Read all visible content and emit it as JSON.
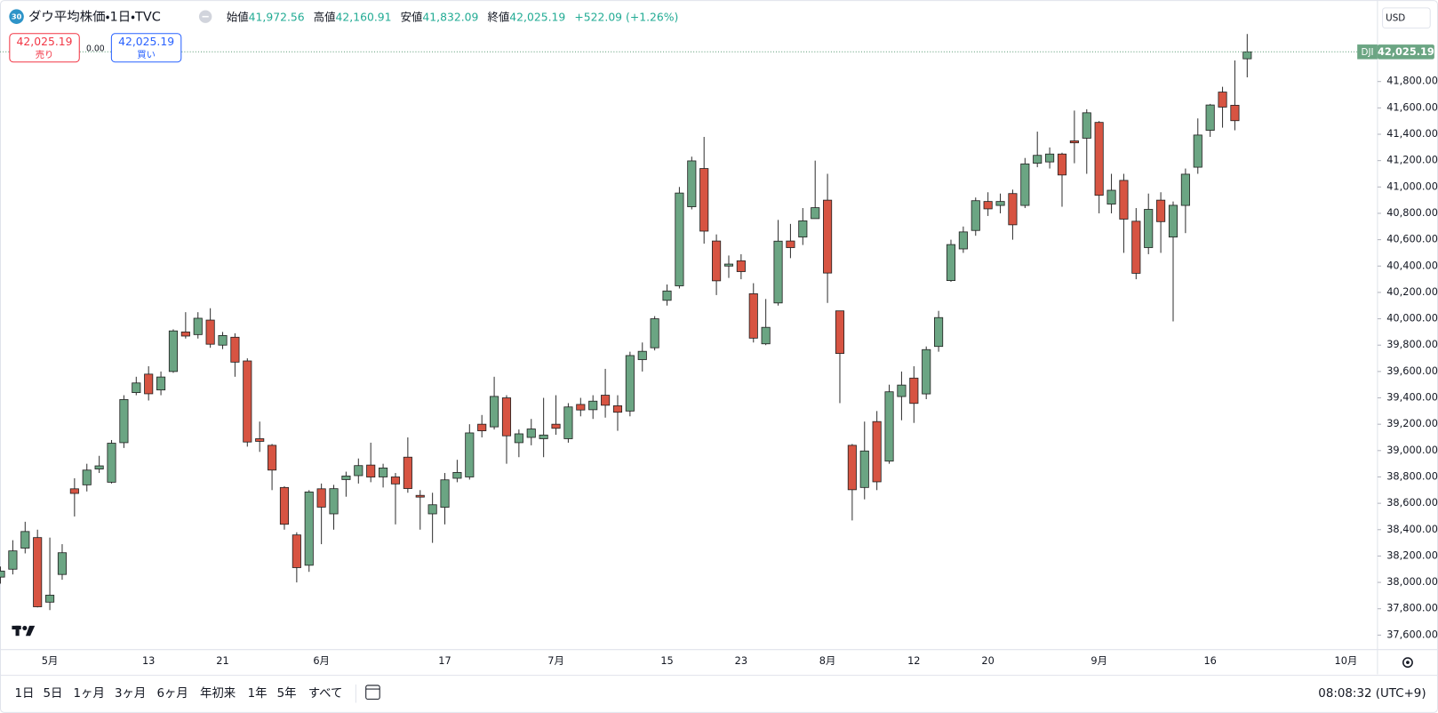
{
  "header": {
    "badge": "30",
    "title": "ダウ平均株価・1日・TVC",
    "ohlc": [
      {
        "name": "始値",
        "value": "41,972.56"
      },
      {
        "name": "高値",
        "value": "42,160.91"
      },
      {
        "name": "安値",
        "value": "41,832.09"
      },
      {
        "name": "終値",
        "value": "42,025.19"
      }
    ],
    "change": "+522.09 (+1.26%)"
  },
  "trade": {
    "sell_price": "42,025.19",
    "sell": "売り",
    "spread": "0.00",
    "buy_price": "42,025.19",
    "buy": "買い"
  },
  "currency": "USD",
  "last_price": {
    "symbol": "DJI",
    "label": "42,025.19"
  },
  "toolbar": {
    "ranges": [
      "1日",
      "5日",
      "1ヶ月",
      "3ヶ月",
      "6ヶ月",
      "年初来",
      "1年",
      "5年",
      "すべて"
    ],
    "clock": "08:08:32 (UTC+9)"
  },
  "chart_data": {
    "type": "candlestick",
    "categories": [
      null,
      null,
      null,
      null,
      "5月",
      null,
      null,
      null,
      null,
      null,
      null,
      null,
      "13",
      null,
      null,
      null,
      null,
      null,
      "21",
      null,
      null,
      null,
      null,
      null,
      null,
      null,
      "6月",
      null,
      null,
      null,
      null,
      null,
      null,
      null,
      null,
      null,
      "17",
      null,
      null,
      null,
      null,
      null,
      null,
      null,
      null,
      "7月",
      null,
      null,
      null,
      null,
      null,
      null,
      null,
      null,
      "15",
      null,
      null,
      null,
      null,
      null,
      "23",
      null,
      null,
      null,
      null,
      null,
      null,
      "8月",
      null,
      null,
      null,
      null,
      null,
      null,
      "12",
      null,
      null,
      null,
      null,
      null,
      "20",
      null,
      null,
      null,
      null,
      null,
      null,
      null,
      null,
      "9月",
      null,
      null,
      null,
      null,
      null,
      null,
      null,
      null,
      "16",
      null,
      null,
      null,
      null,
      null,
      null,
      null,
      null,
      null,
      null,
      "10月"
    ],
    "open": [
      38040,
      38100,
      38260,
      38340,
      37850,
      38060,
      38710,
      38740,
      38860,
      38760,
      39060,
      39440,
      39580,
      39460,
      39600,
      39900,
      39880,
      39990,
      39800,
      39860,
      39680,
      39090,
      39040,
      38720,
      38360,
      38130,
      38710,
      38520,
      38780,
      38810,
      38890,
      38800,
      38800,
      38950,
      38660,
      38520,
      38570,
      38790,
      38800,
      39200,
      39180,
      39400,
      39060,
      39100,
      39090,
      39200,
      39090,
      39350,
      39310,
      39420,
      39340,
      39300,
      39690,
      39780,
      40140,
      40250,
      40850,
      41140,
      40590,
      40400,
      40440,
      40190,
      39810,
      40120,
      40590,
      40620,
      40760,
      40900,
      40060,
      39040,
      38720,
      39220,
      38920,
      39410,
      39550,
      39430,
      39790,
      40290,
      40530,
      40670,
      40890,
      40860,
      40950,
      40860,
      41180,
      41190,
      41250,
      41350,
      41370,
      41490,
      40870,
      41050,
      40740,
      40540,
      40900,
      40620,
      40860,
      41150,
      41430,
      41720,
      41620,
      41972.56,
      null,
      null,
      null,
      null,
      null,
      null,
      null,
      null
    ],
    "high": [
      38120,
      38320,
      38460,
      38400,
      38340,
      38290,
      38790,
      38900,
      38960,
      39080,
      39420,
      39560,
      39640,
      39600,
      39920,
      40050,
      40050,
      40080,
      39900,
      39890,
      39700,
      39220,
      39050,
      38730,
      38380,
      38700,
      38750,
      38740,
      38840,
      38940,
      39060,
      38900,
      38830,
      39100,
      38700,
      38680,
      38830,
      38930,
      39200,
      39270,
      39560,
      39420,
      39160,
      39240,
      39400,
      39420,
      39360,
      39400,
      39420,
      39620,
      39420,
      39750,
      39820,
      40020,
      40260,
      41000,
      41230,
      41380,
      40640,
      40480,
      40490,
      40270,
      40150,
      40750,
      40720,
      40840,
      41200,
      41100,
      40060,
      39050,
      39220,
      39300,
      39500,
      39600,
      39640,
      39790,
      40060,
      40600,
      40700,
      40920,
      40960,
      40950,
      40980,
      41220,
      41420,
      41300,
      41260,
      41580,
      41590,
      41500,
      41100,
      41100,
      40840,
      40950,
      40960,
      40890,
      41140,
      41520,
      41630,
      41760,
      41960,
      42160.91,
      null,
      null,
      null,
      null,
      null,
      null,
      null,
      null
    ],
    "low": [
      37990,
      38060,
      38220,
      37810,
      37790,
      38020,
      38500,
      38690,
      38830,
      38750,
      39020,
      39420,
      39380,
      39420,
      39590,
      39850,
      39850,
      39780,
      39770,
      39560,
      39030,
      38990,
      38700,
      38400,
      38000,
      38080,
      38290,
      38400,
      38650,
      38750,
      38760,
      38720,
      38440,
      38680,
      38400,
      38300,
      38440,
      38760,
      38780,
      39100,
      39160,
      38900,
      38950,
      39040,
      38950,
      39120,
      39060,
      39260,
      39240,
      39250,
      39150,
      39260,
      39600,
      39760,
      40100,
      40230,
      40830,
      40570,
      40180,
      40310,
      40300,
      39820,
      39800,
      40100,
      40460,
      40560,
      40760,
      40120,
      39360,
      38470,
      38630,
      38700,
      38900,
      39230,
      39210,
      39390,
      39750,
      40280,
      40500,
      40630,
      40780,
      40800,
      40600,
      40840,
      41150,
      41140,
      40850,
      41180,
      41100,
      40800,
      40800,
      40500,
      40300,
      40490,
      40500,
      39980,
      40650,
      41100,
      41380,
      41450,
      41430,
      41832.09,
      null,
      null,
      null,
      null,
      null,
      null,
      null,
      null
    ],
    "close": [
      38086,
      38239,
      38386,
      37815,
      37903,
      38225,
      38675,
      38852,
      38884,
      39056,
      39387,
      39513,
      39431,
      39558,
      39908,
      39869,
      40004,
      39807,
      39873,
      39671,
      39065,
      39070,
      38852,
      38441,
      38112,
      38686,
      38571,
      38711,
      38807,
      38886,
      38799,
      38868,
      38747,
      38712,
      38647,
      38589,
      38778,
      38834,
      39134,
      39150,
      39411,
      39112,
      39127,
      39164,
      39118,
      39169,
      39331,
      39308,
      39375,
      39344,
      39291,
      39721,
      39753,
      40000,
      40211,
      40954,
      41198,
      40665,
      40288,
      40415,
      40358,
      39853,
      39935,
      40589,
      40540,
      40743,
      40843,
      40347,
      39737,
      38703,
      38997,
      38763,
      39446,
      39497,
      39358,
      39766,
      40009,
      40563,
      40659,
      40896,
      40834,
      40890,
      40713,
      41175,
      41240,
      41250,
      41091,
      41335,
      41563,
      40937,
      40975,
      40756,
      40345,
      40830,
      40737,
      40861,
      41097,
      41394,
      41622,
      41606,
      41503,
      42025.19,
      null,
      null,
      null,
      null,
      null,
      null,
      null,
      null
    ],
    "up_color": "#6ba583",
    "down_color": "#d75442",
    "ylim": [
      37490,
      42390
    ],
    "yticks": [
      {
        "value": 37600,
        "label": "37,600.00"
      },
      {
        "value": 37800,
        "label": "37,800.00"
      },
      {
        "value": 38000,
        "label": "38,000.00"
      },
      {
        "value": 38200,
        "label": "38,200.00"
      },
      {
        "value": 38400,
        "label": "38,400.00"
      },
      {
        "value": 38600,
        "label": "38,600.00"
      },
      {
        "value": 38800,
        "label": "38,800.00"
      },
      {
        "value": 39000,
        "label": "39,000.00"
      },
      {
        "value": 39200,
        "label": "39,200.00"
      },
      {
        "value": 39400,
        "label": "39,400.00"
      },
      {
        "value": 39600,
        "label": "39,600.00"
      },
      {
        "value": 39800,
        "label": "39,800.00"
      },
      {
        "value": 40000,
        "label": "40,000.00"
      },
      {
        "value": 40200,
        "label": "40,200.00"
      },
      {
        "value": 40400,
        "label": "40,400.00"
      },
      {
        "value": 40600,
        "label": "40,600.00"
      },
      {
        "value": 40800,
        "label": "40,800.00"
      },
      {
        "value": 41000,
        "label": "41,000.00"
      },
      {
        "value": 41200,
        "label": "41,200.00"
      },
      {
        "value": 41400,
        "label": "41,400.00"
      },
      {
        "value": 41600,
        "label": "41,600.00"
      },
      {
        "value": 41800,
        "label": "41,800.00"
      }
    ],
    "grid": false
  }
}
